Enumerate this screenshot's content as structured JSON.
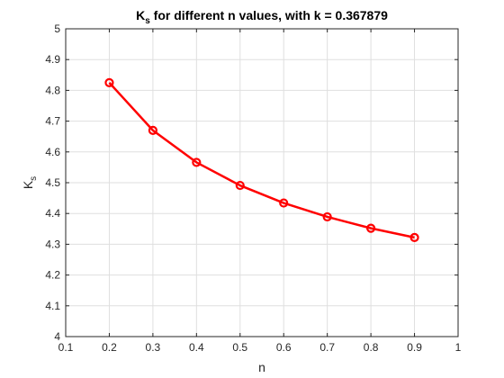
{
  "chart_data": {
    "type": "line",
    "title": {
      "symbol": "K",
      "subscript": "s",
      "text": " for different n values, with k = 0.367879"
    },
    "xlabel": "n",
    "ylabel": {
      "symbol": "K",
      "subscript": "s"
    },
    "xlim": [
      0.1,
      1
    ],
    "ylim": [
      4,
      5
    ],
    "xticks": [
      "0.1",
      "0.2",
      "0.3",
      "0.4",
      "0.5",
      "0.6",
      "0.7",
      "0.8",
      "0.9",
      "1"
    ],
    "yticks": [
      "4",
      "4.1",
      "4.2",
      "4.3",
      "4.4",
      "4.5",
      "4.6",
      "4.7",
      "4.8",
      "4.9",
      "5"
    ],
    "grid": true,
    "series": [
      {
        "color": "#ff0000",
        "marker": "circle",
        "x": [
          0.2,
          0.3,
          0.4,
          0.5,
          0.6,
          0.7,
          0.8,
          0.9
        ],
        "y": [
          4.825,
          4.67,
          4.566,
          4.491,
          4.434,
          4.389,
          4.352,
          4.322
        ]
      }
    ]
  }
}
